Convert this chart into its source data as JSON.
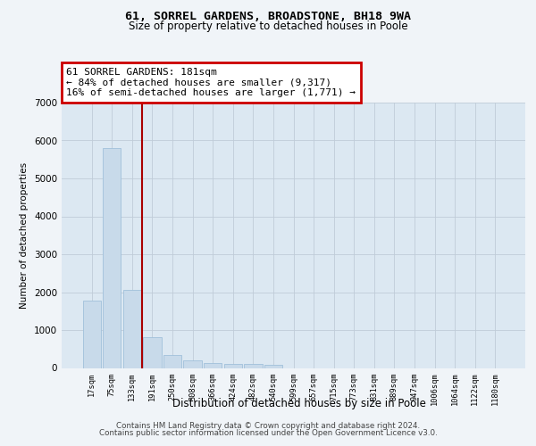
{
  "title1": "61, SORREL GARDENS, BROADSTONE, BH18 9WA",
  "title2": "Size of property relative to detached houses in Poole",
  "xlabel": "Distribution of detached houses by size in Poole",
  "ylabel": "Number of detached properties",
  "bar_color": "#c8daea",
  "bar_edge_color": "#a0c0da",
  "vline_color": "#aa0000",
  "annotation_title": "61 SORREL GARDENS: 181sqm",
  "annotation_line1": "← 84% of detached houses are smaller (9,317)",
  "annotation_line2": "16% of semi-detached houses are larger (1,771) →",
  "annotation_box_color": "#cc0000",
  "background_color": "#f0f4f8",
  "plot_bg_color": "#dce8f2",
  "grid_color": "#c0ccd8",
  "categories": [
    "17sqm",
    "75sqm",
    "133sqm",
    "191sqm",
    "250sqm",
    "308sqm",
    "366sqm",
    "424sqm",
    "482sqm",
    "540sqm",
    "599sqm",
    "657sqm",
    "715sqm",
    "773sqm",
    "831sqm",
    "889sqm",
    "947sqm",
    "1006sqm",
    "1064sqm",
    "1122sqm",
    "1180sqm"
  ],
  "values": [
    1780,
    5800,
    2060,
    820,
    340,
    200,
    120,
    110,
    95,
    80,
    0,
    0,
    0,
    0,
    0,
    0,
    0,
    0,
    0,
    0,
    0
  ],
  "vline_x": 2.5,
  "ylim": [
    0,
    7000
  ],
  "yticks": [
    0,
    1000,
    2000,
    3000,
    4000,
    5000,
    6000,
    7000
  ],
  "footnote1": "Contains HM Land Registry data © Crown copyright and database right 2024.",
  "footnote2": "Contains public sector information licensed under the Open Government Licence v3.0."
}
